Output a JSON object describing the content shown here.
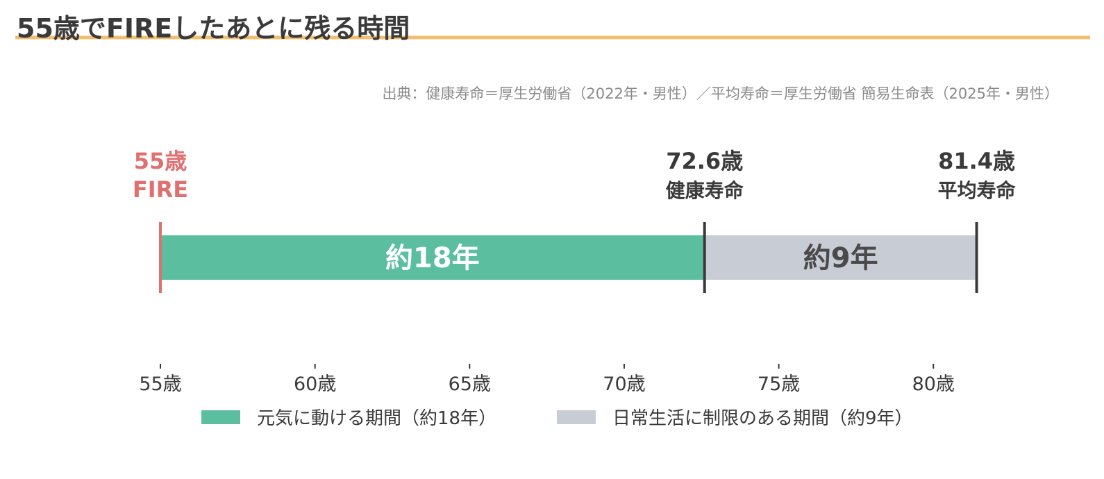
{
  "chart_data": {
    "type": "bar",
    "orientation": "horizontal-timeline",
    "title": "55歳でFIREしたあとに残る時間",
    "source": "出典：健康寿命＝厚生労働省（2022年・男性）／平均寿命＝厚生労働省 簡易生命表（2025年・男性）",
    "xlim": [
      55,
      81.4
    ],
    "x_ticks": [
      55,
      60,
      65,
      70,
      75,
      80
    ],
    "x_tick_labels": [
      "55歳",
      "60歳",
      "65歳",
      "70歳",
      "75歳",
      "80歳"
    ],
    "segments": [
      {
        "start": 55,
        "end": 72.6,
        "label": "約18年",
        "color": "#5bbf9f",
        "label_color": "#ffffff"
      },
      {
        "start": 72.6,
        "end": 81.4,
        "label": "約9年",
        "color": "#c8ccd5",
        "label_color": "#4a4a4a"
      }
    ],
    "markers": [
      {
        "x": 55,
        "value_label": "55歳",
        "name_label": "FIRE",
        "color": "#e07070"
      },
      {
        "x": 72.6,
        "value_label": "72.6歳",
        "name_label": "健康寿命",
        "color": "#3a3a3a"
      },
      {
        "x": 81.4,
        "value_label": "81.4歳",
        "name_label": "平均寿命",
        "color": "#3a3a3a"
      }
    ],
    "legend": {
      "position": "bottom",
      "entries": [
        {
          "label": "元気に動ける期間（約18年）",
          "color": "#5bbf9f"
        },
        {
          "label": "日常生活に制限のある期間（約9年）",
          "color": "#c8ccd5"
        }
      ]
    },
    "accent_color": "#f0c070",
    "grid": false
  }
}
